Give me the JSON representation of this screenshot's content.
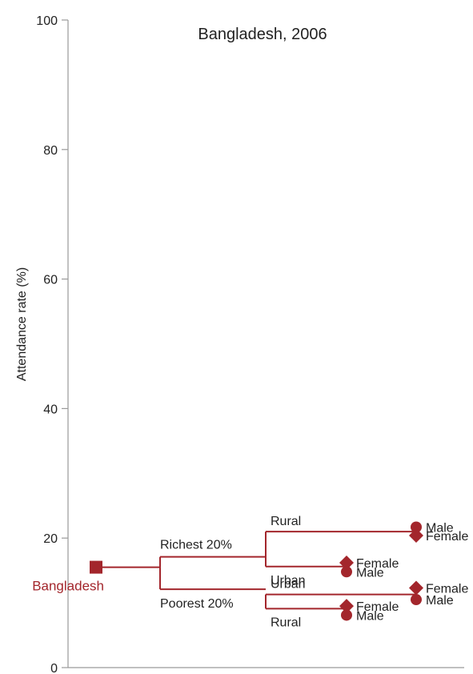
{
  "chart_data": {
    "type": "tree",
    "title": "Bangladesh, 2006",
    "ylabel": "Attendance rate (%)",
    "xlabel": "",
    "ylim": [
      0,
      100
    ],
    "yticks": [
      0,
      20,
      40,
      60,
      80,
      100
    ],
    "grid": false,
    "accent_color": "#a3262c",
    "root": {
      "label": "Bangladesh",
      "value": 15.5,
      "children": [
        {
          "label": "Richest 20%",
          "value": 17.1,
          "children": [
            {
              "label": "Rural",
              "value": 21.0,
              "children": [
                {
                  "label": "Male",
                  "value": 21.7,
                  "marker": "circle"
                },
                {
                  "label": "Female",
                  "value": 20.4,
                  "marker": "diamond"
                }
              ]
            },
            {
              "label": "Urban",
              "value": 15.6,
              "children": [
                {
                  "label": "Female",
                  "value": 16.2,
                  "marker": "diamond"
                },
                {
                  "label": "Male",
                  "value": 14.8,
                  "marker": "circle"
                }
              ]
            }
          ]
        },
        {
          "label": "Poorest 20%",
          "value": 12.1,
          "children": [
            {
              "label": "Urban",
              "value": 11.3,
              "children": [
                {
                  "label": "Female",
                  "value": 12.3,
                  "marker": "diamond"
                },
                {
                  "label": "Male",
                  "value": 10.5,
                  "marker": "circle"
                }
              ]
            },
            {
              "label": "Rural",
              "value": 9.1,
              "children": [
                {
                  "label": "Female",
                  "value": 9.5,
                  "marker": "diamond"
                },
                {
                  "label": "Male",
                  "value": 8.1,
                  "marker": "circle"
                }
              ]
            }
          ]
        }
      ]
    }
  }
}
